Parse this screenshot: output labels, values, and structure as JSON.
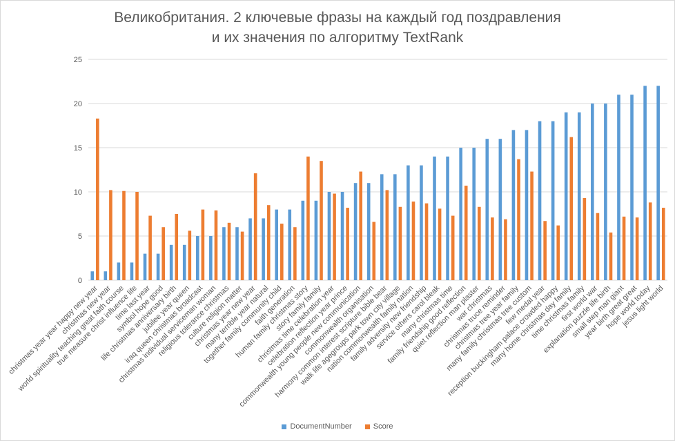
{
  "chart_data": {
    "type": "bar",
    "title": [
      "Великобритания. 2 ключевые фразы на каждый год поздравления",
      "и их значения по алгоритму TextRank"
    ],
    "xlabel": "",
    "ylabel": "",
    "ylim": [
      0,
      25
    ],
    "yticks": [
      0,
      5,
      10,
      15,
      20,
      25
    ],
    "grid": "horizontal",
    "legend_position": "bottom",
    "categories": [
      "christmas year year happy new year",
      "christmas new year",
      "world spirituality teaching great faith course",
      "true measure christ influence life",
      "time last year",
      "symbol hope good",
      "life christmas anniversary birth",
      "jubilee year queen",
      "iraq queen christmas broadcast",
      "christmas individual serviceman woman",
      "religious tolerance christmas",
      "culture religion matter",
      "christmas year new year",
      "many terrible year natural",
      "together family community child",
      "faith generation",
      "human family christmas story",
      "story family family",
      "christmas time celebration year",
      "celebration reflection year prince",
      "commonwealth young people new communication",
      "commonwealth organisation",
      "harmony common interest scripture bible bear",
      "walk life agegroups park town city village",
      "nation commonwealth family nation",
      "family adversity new friendship",
      "service others carol bleak",
      "many christmas time",
      "family friendship good reflection",
      "quiet reflection man plaster",
      "war christmas",
      "christmas truce reminder",
      "christmas tree year family",
      "many family christmas tree custom",
      "few medal year",
      "reception buckingham palace crowded happy",
      "many home christmas day family",
      "time christmas family",
      "first world war",
      "explanation puzzle life birth",
      "small step man giant",
      "year birth great great",
      "hope world today",
      "jesus light world"
    ],
    "series": [
      {
        "name": "DocumentNumber",
        "color": "#5b9bd5",
        "values": [
          1,
          1,
          2,
          2,
          3,
          3,
          4,
          4,
          5,
          5,
          6,
          6,
          7,
          7,
          8,
          8,
          9,
          9,
          10,
          10,
          11,
          11,
          12,
          12,
          13,
          13,
          14,
          14,
          15,
          15,
          16,
          16,
          17,
          17,
          18,
          18,
          19,
          19,
          20,
          20,
          21,
          21,
          22,
          22
        ]
      },
      {
        "name": "Score",
        "color": "#ed7d31",
        "values": [
          18.3,
          10.2,
          10.1,
          10.0,
          7.3,
          6.0,
          7.5,
          5.6,
          8.0,
          7.9,
          6.5,
          5.5,
          12.1,
          8.5,
          6.4,
          6.0,
          14.0,
          13.5,
          9.8,
          8.2,
          12.3,
          6.6,
          10.2,
          8.3,
          8.9,
          8.7,
          8.1,
          7.3,
          10.7,
          8.3,
          7.1,
          6.9,
          13.7,
          12.3,
          6.7,
          6.2,
          16.2,
          9.3,
          7.6,
          5.4,
          7.2,
          7.1,
          8.8,
          8.2
        ]
      }
    ]
  }
}
